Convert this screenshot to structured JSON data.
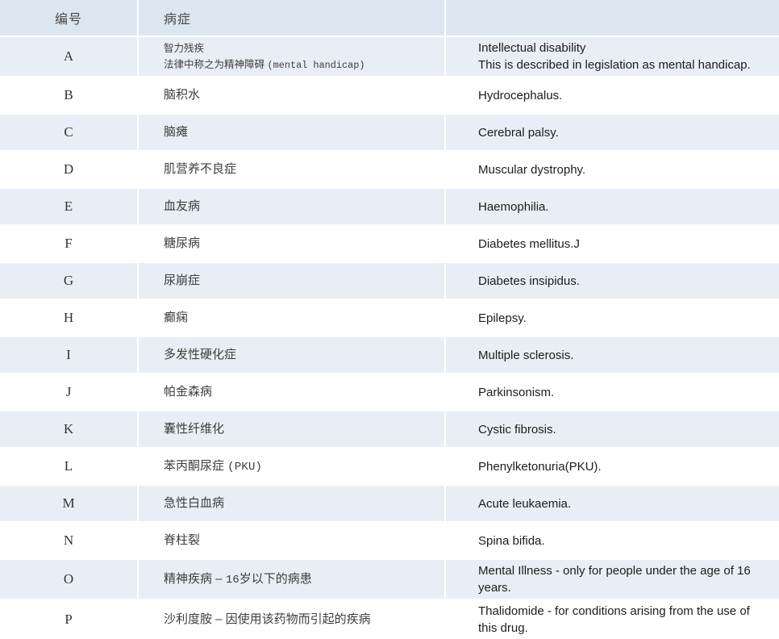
{
  "table": {
    "colors": {
      "header_bg": "#dce6f1",
      "shaded_row_bg": "#e9eef6",
      "row_bg": "#ffffff",
      "divider": "#ffffff",
      "zh_text": "#3d3d3d",
      "en_text": "#1c1c1c",
      "code_text": "#333333",
      "header_text": "#4a4a4a"
    },
    "header": {
      "code_label": "编号",
      "condition_label": "病症",
      "empty_label": ""
    },
    "rows": [
      {
        "code": "A",
        "shaded": true,
        "small": true,
        "zh": [
          [
            {
              "t": "智力残疾"
            }
          ],
          [
            {
              "t": "法律中称之为精神障碍 "
            },
            {
              "t": "(mental handicap)",
              "latin": true
            }
          ]
        ],
        "en": [
          "Intellectual disability",
          "This is described in legislation as mental handicap."
        ]
      },
      {
        "code": "B",
        "shaded": false,
        "zh": [
          [
            {
              "t": "脑积水"
            }
          ]
        ],
        "en": [
          "Hydrocephalus."
        ]
      },
      {
        "code": "C",
        "shaded": true,
        "zh": [
          [
            {
              "t": "脑瘫"
            }
          ]
        ],
        "en": [
          "Cerebral palsy."
        ]
      },
      {
        "code": "D",
        "shaded": false,
        "zh": [
          [
            {
              "t": "肌营养不良症"
            }
          ]
        ],
        "en": [
          "Muscular dystrophy."
        ]
      },
      {
        "code": "E",
        "shaded": true,
        "zh": [
          [
            {
              "t": "血友病"
            }
          ]
        ],
        "en": [
          "Haemophilia."
        ]
      },
      {
        "code": "F",
        "shaded": false,
        "zh": [
          [
            {
              "t": "糖尿病"
            }
          ]
        ],
        "en": [
          "Diabetes mellitus.J"
        ]
      },
      {
        "code": "G",
        "shaded": true,
        "zh": [
          [
            {
              "t": "尿崩症"
            }
          ]
        ],
        "en": [
          "Diabetes insipidus."
        ]
      },
      {
        "code": "H",
        "shaded": false,
        "zh": [
          [
            {
              "t": "癫痫"
            }
          ]
        ],
        "en": [
          "Epilepsy."
        ]
      },
      {
        "code": "I",
        "shaded": true,
        "zh": [
          [
            {
              "t": "多发性硬化症"
            }
          ]
        ],
        "en": [
          "Multiple sclerosis."
        ]
      },
      {
        "code": "J",
        "shaded": false,
        "zh": [
          [
            {
              "t": "帕金森病"
            }
          ]
        ],
        "en": [
          "Parkinsonism."
        ]
      },
      {
        "code": "K",
        "shaded": true,
        "zh": [
          [
            {
              "t": "囊性纤维化"
            }
          ]
        ],
        "en": [
          "Cystic fibrosis."
        ]
      },
      {
        "code": "L",
        "shaded": false,
        "zh": [
          [
            {
              "t": "苯丙酮尿症 "
            },
            {
              "t": "(PKU)",
              "latin": true
            }
          ]
        ],
        "en": [
          "Phenylketonuria(PKU)."
        ]
      },
      {
        "code": "M",
        "shaded": true,
        "zh": [
          [
            {
              "t": "急性白血病"
            }
          ]
        ],
        "en": [
          "Acute leukaemia."
        ]
      },
      {
        "code": "N",
        "shaded": false,
        "zh": [
          [
            {
              "t": "脊柱裂"
            }
          ]
        ],
        "en": [
          "Spina bifida."
        ]
      },
      {
        "code": "O",
        "shaded": true,
        "zh": [
          [
            {
              "t": "精神疾病 – "
            },
            {
              "t": "16",
              "latin": true
            },
            {
              "t": "岁以下的病患"
            }
          ]
        ],
        "en": [
          "Mental Illness - only for people under the age of 16 years."
        ]
      },
      {
        "code": "P",
        "shaded": false,
        "zh": [
          [
            {
              "t": "沙利度胺 – 因使用该药物而引起的疾病"
            }
          ]
        ],
        "en": [
          "Thalidomide - for conditions arising from the use of this drug."
        ]
      }
    ]
  }
}
